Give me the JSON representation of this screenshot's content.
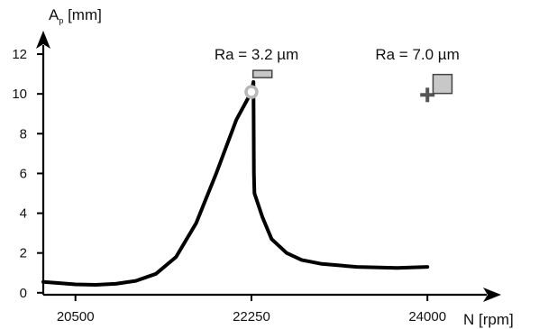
{
  "chart_data": {
    "type": "line",
    "title": "",
    "xlabel": "N [rpm]",
    "ylabel": {
      "main": "A",
      "sub": "p",
      "unit": " [mm]"
    },
    "xlim": [
      20180,
      24500
    ],
    "ylim": [
      -0.1,
      13.0
    ],
    "x_ticks": [
      20500,
      22250,
      24000
    ],
    "y_ticks": [
      0,
      2,
      4,
      6,
      8,
      10,
      12
    ],
    "grid": false,
    "series": [
      {
        "color": "#000000",
        "points": [
          [
            20180,
            0.55
          ],
          [
            20300,
            0.5
          ],
          [
            20500,
            0.42
          ],
          [
            20700,
            0.4
          ],
          [
            20900,
            0.45
          ],
          [
            21100,
            0.6
          ],
          [
            21300,
            0.95
          ],
          [
            21500,
            1.8
          ],
          [
            21700,
            3.5
          ],
          [
            21900,
            6.0
          ],
          [
            22100,
            8.7
          ],
          [
            22250,
            10.1
          ],
          [
            22270,
            10.6
          ],
          [
            22275,
            6.0
          ],
          [
            22280,
            5.0
          ],
          [
            22360,
            3.8
          ],
          [
            22450,
            2.7
          ],
          [
            22600,
            2.0
          ],
          [
            22750,
            1.65
          ],
          [
            22950,
            1.45
          ],
          [
            23300,
            1.3
          ],
          [
            23700,
            1.25
          ],
          [
            24000,
            1.3
          ]
        ]
      }
    ],
    "markers": [
      {
        "kind": "circle",
        "x": 22250,
        "y": 10.1,
        "color": "#b8b8b8"
      },
      {
        "kind": "plus",
        "x": 24000,
        "y": 9.95,
        "color": "#555555"
      }
    ],
    "annotations": [
      {
        "text": "Ra = 3.2 µm",
        "x": 22300,
        "y": 12.0,
        "swatch": {
          "x": 22360,
          "y": 11.0,
          "size": "small"
        }
      },
      {
        "text": "Ra = 7.0 µm",
        "x": 23900,
        "y": 12.0,
        "swatch": {
          "x": 24150,
          "y": 10.5,
          "size": "large"
        }
      }
    ],
    "colors": {
      "line": "#000000",
      "swatch_fill": "#c8c8c8",
      "swatch_stroke": "#444444"
    }
  }
}
